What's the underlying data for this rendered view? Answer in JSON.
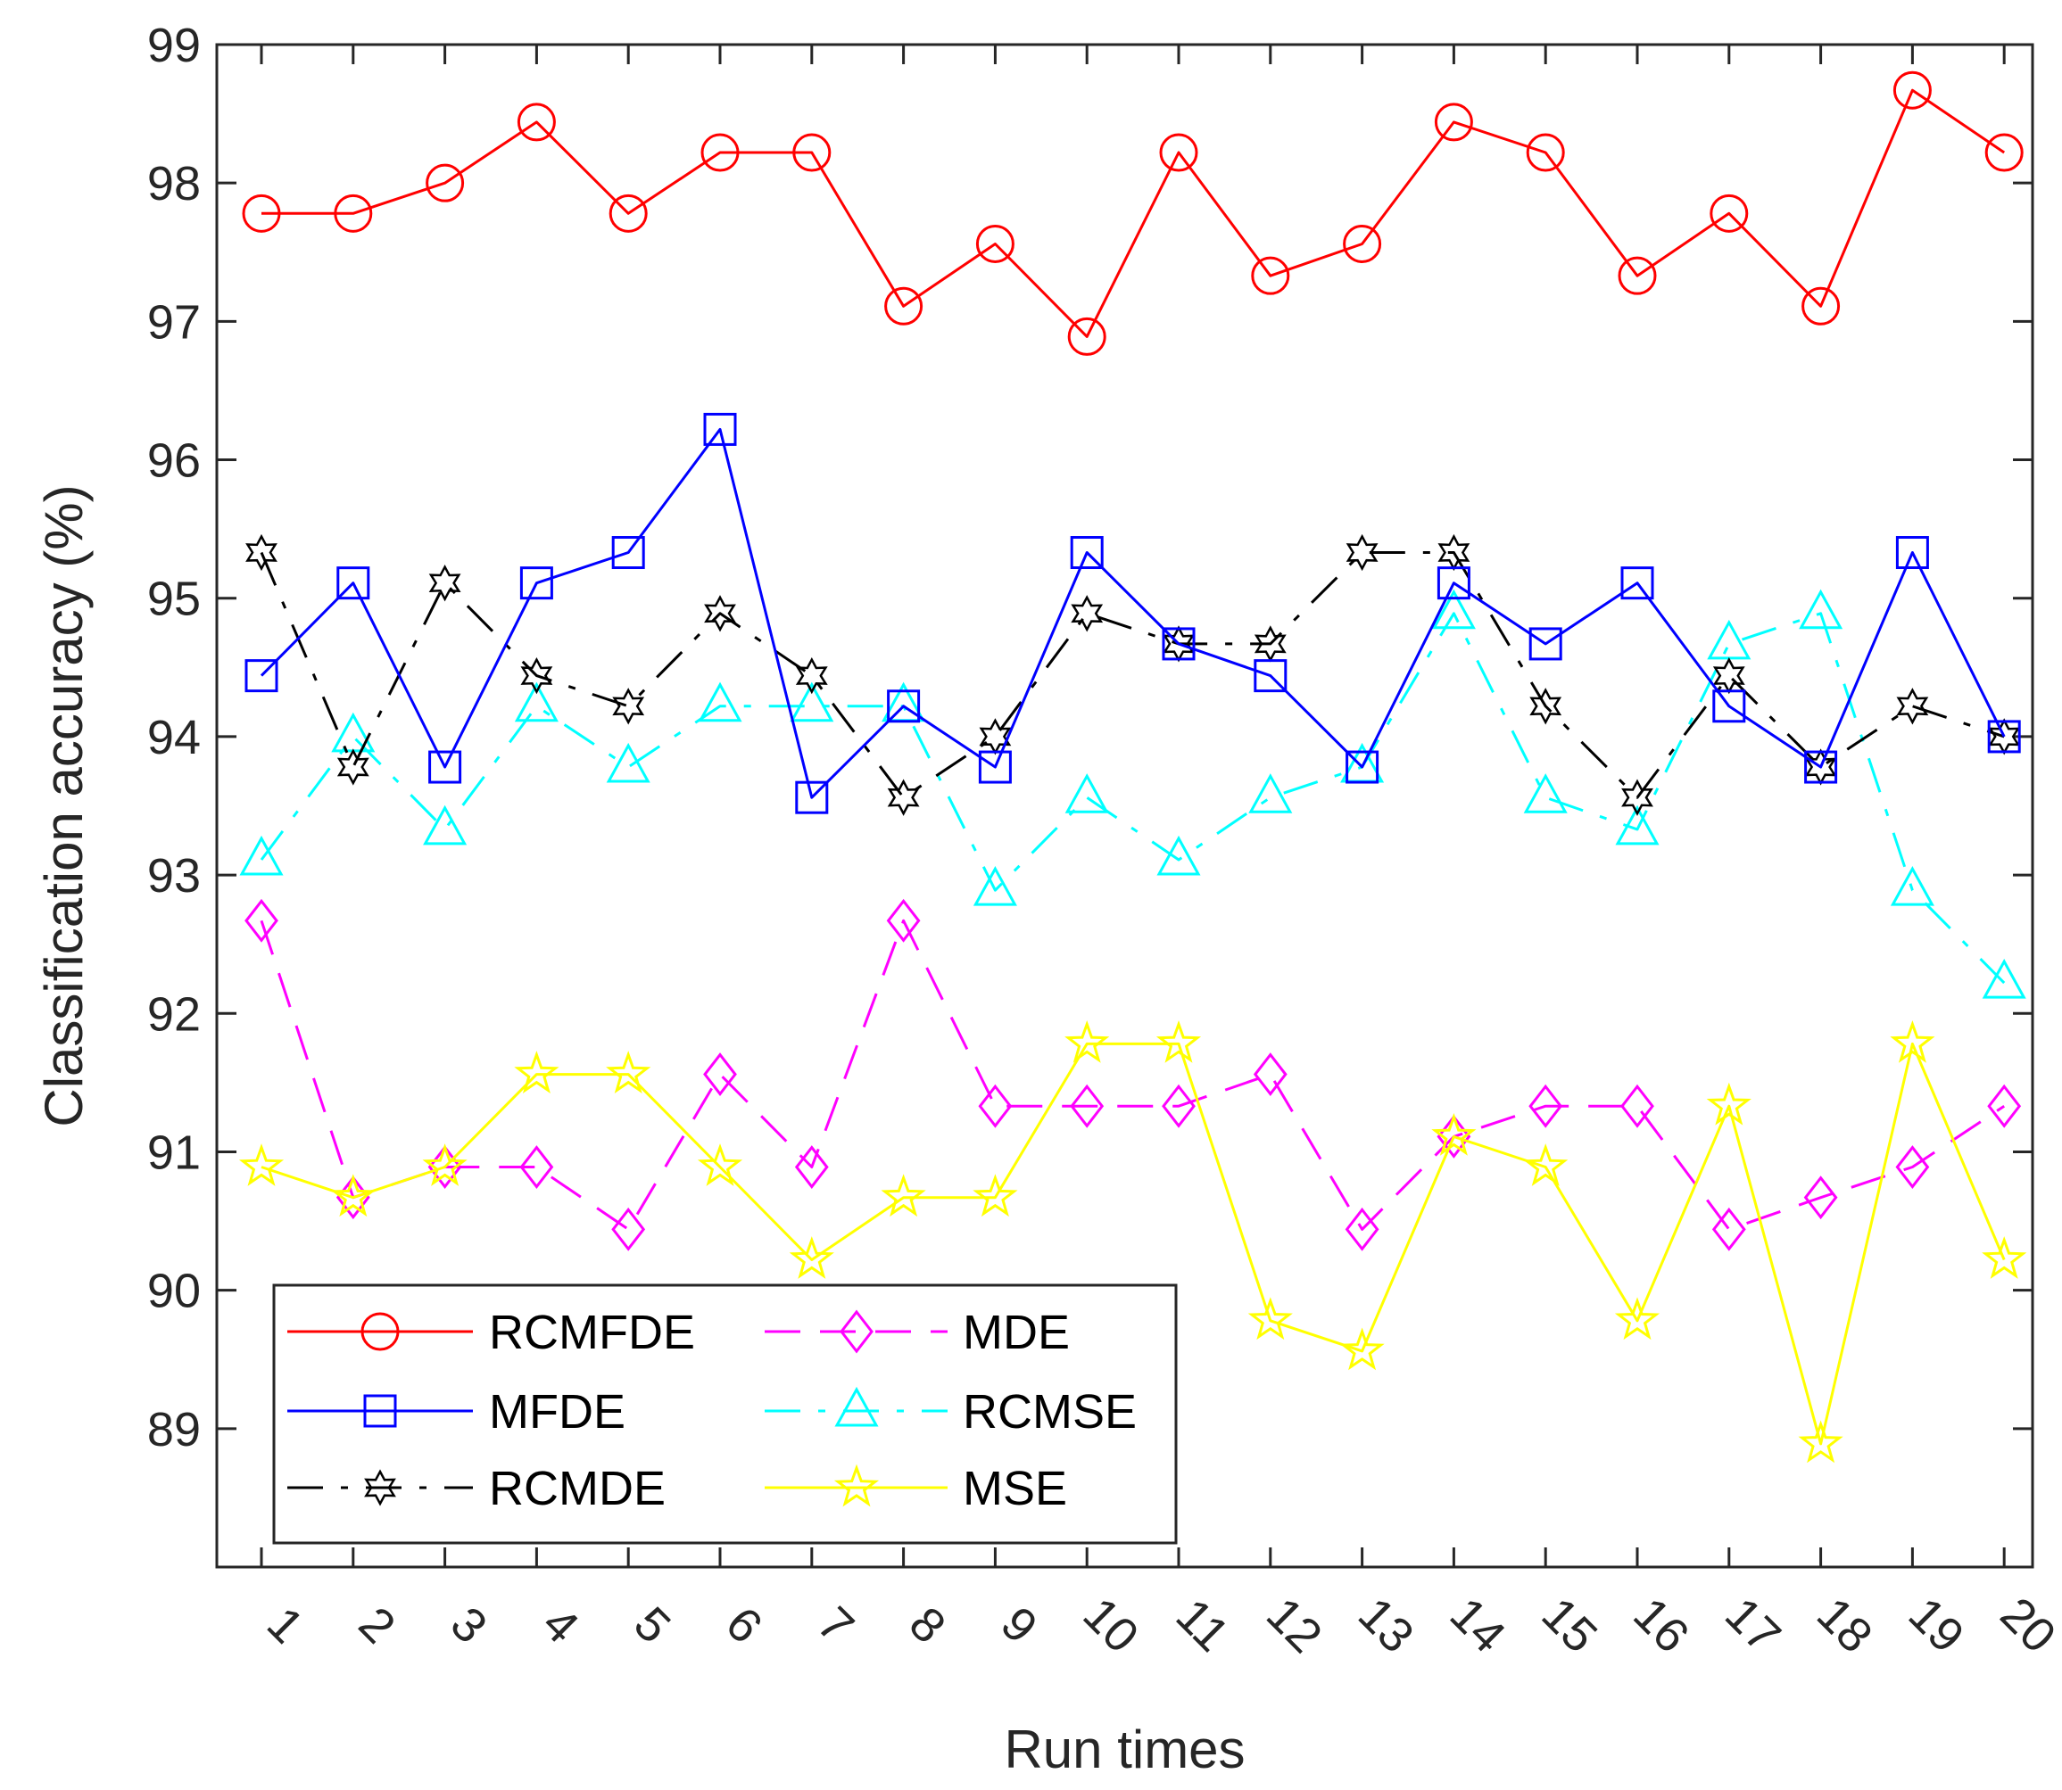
{
  "chart_data": {
    "type": "line",
    "title": "",
    "xlabel": "Run times",
    "ylabel": "Classification accuracy (%)",
    "categories": [
      "1",
      "2",
      "3",
      "4",
      "5",
      "6",
      "7",
      "8",
      "9",
      "10",
      "11",
      "12",
      "13",
      "14",
      "15",
      "16",
      "17",
      "18",
      "19",
      "20"
    ],
    "ylim": [
      88,
      99
    ],
    "yticks": [
      "89",
      "90",
      "91",
      "92",
      "93",
      "94",
      "95",
      "96",
      "97",
      "98",
      "99"
    ],
    "grid": false,
    "legend_position": "bottom-left",
    "series": [
      {
        "name": "RCMFDE",
        "color": "#ff0000",
        "marker": "circle",
        "dash": "solid",
        "values": [
          97.78,
          97.78,
          98.0,
          98.44,
          97.78,
          98.22,
          98.22,
          97.11,
          97.56,
          96.89,
          98.22,
          97.33,
          97.56,
          98.44,
          98.22,
          97.33,
          97.78,
          97.11,
          98.67,
          98.22
        ]
      },
      {
        "name": "MFDE",
        "color": "#0000ff",
        "marker": "square",
        "dash": "solid",
        "values": [
          94.44,
          95.11,
          93.78,
          95.11,
          95.33,
          96.22,
          93.56,
          94.22,
          93.78,
          95.33,
          94.67,
          94.44,
          93.78,
          95.11,
          94.67,
          95.11,
          94.22,
          93.78,
          95.33,
          94.0
        ]
      },
      {
        "name": "RCMDE",
        "color": "#000000",
        "marker": "hexagram",
        "dash": "dashdot",
        "values": [
          95.33,
          93.78,
          95.11,
          94.44,
          94.22,
          94.89,
          94.44,
          93.56,
          94.0,
          94.89,
          94.67,
          94.67,
          95.33,
          95.33,
          94.22,
          93.56,
          94.44,
          93.78,
          94.22,
          94.0
        ]
      },
      {
        "name": "MDE",
        "color": "#ff00ff",
        "marker": "diamond",
        "dash": "dashed",
        "values": [
          92.67,
          90.67,
          90.89,
          90.89,
          90.44,
          91.56,
          90.89,
          92.67,
          91.33,
          91.33,
          91.33,
          91.56,
          90.44,
          91.11,
          91.33,
          91.33,
          90.44,
          90.67,
          90.89,
          91.33
        ]
      },
      {
        "name": "RCMSE",
        "color": "#00ffff",
        "marker": "triangle",
        "dash": "dashdot",
        "values": [
          93.11,
          94.0,
          93.33,
          94.22,
          93.78,
          94.22,
          94.22,
          94.22,
          92.89,
          93.56,
          93.11,
          93.56,
          93.78,
          94.89,
          93.56,
          93.33,
          94.67,
          94.89,
          92.89,
          92.22
        ]
      },
      {
        "name": "MSE",
        "color": "#ffff00",
        "marker": "pentagram",
        "dash": "solid",
        "values": [
          90.89,
          90.67,
          90.89,
          91.56,
          91.56,
          90.89,
          90.22,
          90.67,
          90.67,
          91.78,
          91.78,
          89.78,
          89.56,
          91.11,
          90.89,
          89.78,
          91.33,
          88.89,
          91.78,
          90.22
        ]
      }
    ],
    "legend_order": [
      "RCMFDE",
      "MDE",
      "MFDE",
      "RCMSE",
      "RCMDE",
      "MSE"
    ]
  }
}
